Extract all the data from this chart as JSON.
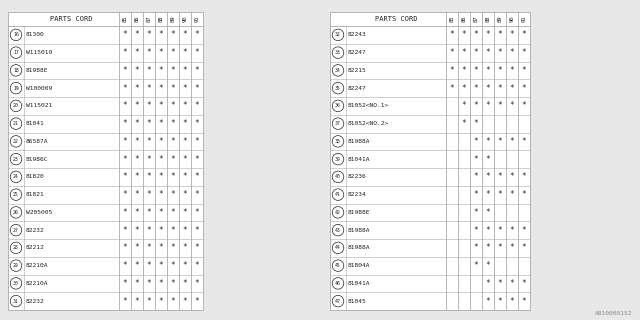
{
  "watermark": "A810000152",
  "col_headers": [
    "85",
    "86",
    "87",
    "88",
    "89",
    "90",
    "91"
  ],
  "left_table": {
    "rows": [
      {
        "num": 16,
        "part": "81300",
        "marks": [
          1,
          1,
          1,
          1,
          1,
          1,
          1
        ]
      },
      {
        "num": 17,
        "part": "W115019",
        "marks": [
          1,
          1,
          1,
          1,
          1,
          1,
          1
        ]
      },
      {
        "num": 18,
        "part": "81988E",
        "marks": [
          1,
          1,
          1,
          1,
          1,
          1,
          1
        ]
      },
      {
        "num": 19,
        "part": "W100009",
        "marks": [
          1,
          1,
          1,
          1,
          1,
          1,
          1
        ]
      },
      {
        "num": 20,
        "part": "W115021",
        "marks": [
          1,
          1,
          1,
          1,
          1,
          1,
          1
        ]
      },
      {
        "num": 21,
        "part": "81041",
        "marks": [
          1,
          1,
          1,
          1,
          1,
          1,
          1
        ]
      },
      {
        "num": 22,
        "part": "86587A",
        "marks": [
          1,
          1,
          1,
          1,
          1,
          1,
          1
        ]
      },
      {
        "num": 23,
        "part": "81986C",
        "marks": [
          1,
          1,
          1,
          1,
          1,
          1,
          1
        ]
      },
      {
        "num": 24,
        "part": "81820",
        "marks": [
          1,
          1,
          1,
          1,
          1,
          1,
          1
        ]
      },
      {
        "num": 25,
        "part": "81821",
        "marks": [
          1,
          1,
          1,
          1,
          1,
          1,
          1
        ]
      },
      {
        "num": 26,
        "part": "W205005",
        "marks": [
          1,
          1,
          1,
          1,
          1,
          1,
          1
        ]
      },
      {
        "num": 27,
        "part": "82232",
        "marks": [
          1,
          1,
          1,
          1,
          1,
          1,
          1
        ]
      },
      {
        "num": 28,
        "part": "82212",
        "marks": [
          1,
          1,
          1,
          1,
          1,
          1,
          1
        ]
      },
      {
        "num": 29,
        "part": "82210A",
        "marks": [
          1,
          1,
          1,
          1,
          1,
          1,
          1
        ]
      },
      {
        "num": 30,
        "part": "82210A",
        "marks": [
          1,
          1,
          1,
          1,
          1,
          1,
          1
        ]
      },
      {
        "num": 31,
        "part": "82232",
        "marks": [
          1,
          1,
          1,
          1,
          1,
          1,
          1
        ]
      }
    ]
  },
  "right_table": {
    "rows": [
      {
        "num": 32,
        "part": "82243",
        "marks": [
          1,
          1,
          1,
          1,
          1,
          1,
          1
        ]
      },
      {
        "num": 33,
        "part": "82247",
        "marks": [
          1,
          1,
          1,
          1,
          1,
          1,
          1
        ]
      },
      {
        "num": 34,
        "part": "82215",
        "marks": [
          1,
          1,
          1,
          1,
          1,
          1,
          1
        ]
      },
      {
        "num": 35,
        "part": "82247",
        "marks": [
          1,
          1,
          1,
          1,
          1,
          1,
          1
        ]
      },
      {
        "num": 36,
        "part": "81052<NO.1>",
        "marks": [
          0,
          1,
          1,
          1,
          1,
          1,
          1
        ]
      },
      {
        "num": 37,
        "part": "81052<NO.2>",
        "marks": [
          0,
          1,
          1,
          0,
          0,
          0,
          0
        ]
      },
      {
        "num": 38,
        "part": "81988A",
        "marks": [
          0,
          0,
          1,
          1,
          1,
          1,
          1
        ]
      },
      {
        "num": 39,
        "part": "81041A",
        "marks": [
          0,
          0,
          1,
          1,
          0,
          0,
          0
        ]
      },
      {
        "num": 40,
        "part": "82236",
        "marks": [
          0,
          0,
          1,
          1,
          1,
          1,
          1
        ]
      },
      {
        "num": 41,
        "part": "82234",
        "marks": [
          0,
          0,
          1,
          1,
          1,
          1,
          1
        ]
      },
      {
        "num": 42,
        "part": "81988E",
        "marks": [
          0,
          0,
          1,
          1,
          0,
          0,
          0
        ]
      },
      {
        "num": 43,
        "part": "81988A",
        "marks": [
          0,
          0,
          1,
          1,
          1,
          1,
          1
        ]
      },
      {
        "num": 44,
        "part": "81988A",
        "marks": [
          0,
          0,
          1,
          1,
          1,
          1,
          1
        ]
      },
      {
        "num": 45,
        "part": "81804A",
        "marks": [
          0,
          0,
          1,
          1,
          0,
          0,
          0
        ]
      },
      {
        "num": 46,
        "part": "81041A",
        "marks": [
          0,
          0,
          0,
          1,
          1,
          1,
          1
        ]
      },
      {
        "num": 47,
        "part": "81045",
        "marks": [
          0,
          0,
          0,
          1,
          1,
          1,
          1
        ]
      }
    ]
  },
  "bg_color": "#e8e8e8",
  "table_bg": "#ffffff",
  "line_color": "#aaaaaa",
  "text_color": "#222222",
  "font_family": "monospace",
  "watermark_color": "#888888"
}
